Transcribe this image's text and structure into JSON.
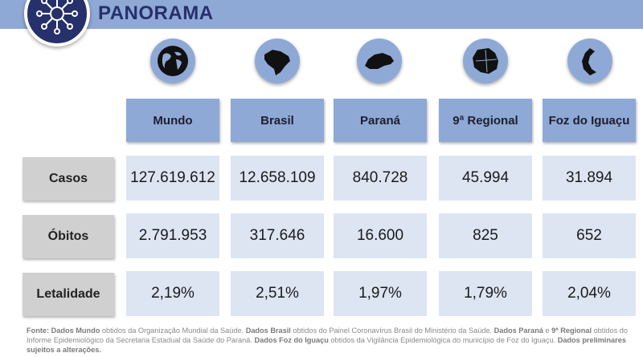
{
  "header": {
    "title": "PANORAMA",
    "badge_icon": "virus-network-icon"
  },
  "columns": [
    {
      "label": "Mundo",
      "icon": "globe-icon"
    },
    {
      "label": "Brasil",
      "icon": "brazil-map-icon"
    },
    {
      "label": "Paraná",
      "icon": "parana-map-icon"
    },
    {
      "label": "9ª Regional",
      "icon": "regional-map-icon"
    },
    {
      "label": "Foz do Iguaçu",
      "icon": "foz-do-iguacu-map-icon"
    }
  ],
  "rows": [
    {
      "label": "Casos",
      "values": [
        "127.619.612",
        "12.658.109",
        "840.728",
        "45.994",
        "31.894"
      ]
    },
    {
      "label": "Óbitos",
      "values": [
        "2.791.953",
        "317.646",
        "16.600",
        "825",
        "652"
      ]
    },
    {
      "label": "Letalidade",
      "values": [
        "2,19%",
        "2,51%",
        "1,97%",
        "1,79%",
        "2,04%"
      ]
    }
  ],
  "footer": {
    "p1_b": "Fonte: Dados Mundo",
    "p1": " obtidos da Organização Mundial da Saúde. ",
    "p2_b": "Dados Brasil",
    "p2": " obtidos do Painel Coronavírus Brasil do Ministério da Saúde. ",
    "p3_b": "Dados Paraná",
    "p3": " e ",
    "p4_b": "9ª Regional",
    "p4": " obtidos do Informe Epidemiológico da Secretaria Estadual da Saúde do Paraná. ",
    "p5_b": "Dados Foz do Iguaçu",
    "p5": " obtidos da Vigilância Epidemiológica do município de Foz do Iguaçu. ",
    "p6_b": "Dados preliminares sujeitos a alterações."
  },
  "colors": {
    "accent": "#8fa9d6",
    "navy": "#26306b",
    "cell": "#dde5f3",
    "label_gray": "#d0d0d0"
  }
}
